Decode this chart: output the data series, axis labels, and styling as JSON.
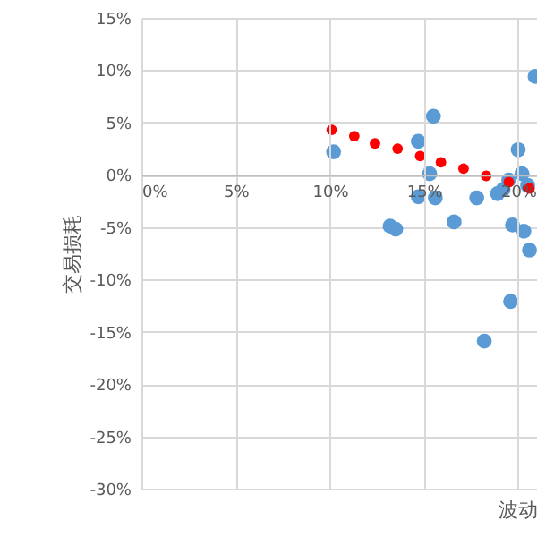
{
  "chart_data": {
    "type": "scatter",
    "xlabel": "波动",
    "ylabel": "交易损耗",
    "xlim": [
      0,
      21
    ],
    "ylim": [
      -30,
      15
    ],
    "xticks": [
      {
        "value": 0,
        "label": "0%"
      },
      {
        "value": 5,
        "label": "5%"
      },
      {
        "value": 10,
        "label": "10%"
      },
      {
        "value": 15,
        "label": "15%"
      },
      {
        "value": 20,
        "label": "20%"
      }
    ],
    "yticks": [
      {
        "value": -30,
        "label": "-30%"
      },
      {
        "value": -25,
        "label": "-25%"
      },
      {
        "value": -20,
        "label": "-20%"
      },
      {
        "value": -15,
        "label": "-15%"
      },
      {
        "value": -10,
        "label": "-10%"
      },
      {
        "value": -5,
        "label": "-5%"
      },
      {
        "value": 0,
        "label": "0%"
      },
      {
        "value": 5,
        "label": "5%"
      },
      {
        "value": 10,
        "label": "10%"
      },
      {
        "value": 15,
        "label": "15%"
      }
    ],
    "grid": true,
    "marker": "circle",
    "series": [
      {
        "color": "#5b9bd5",
        "x": [
          10.2,
          15.5,
          14.7,
          15.3,
          14.7,
          15.6,
          13.2,
          13.5,
          16.6,
          17.8,
          18.9,
          20.0,
          20.2,
          19.5,
          19.7,
          20.3,
          20.6,
          20.9,
          20.5,
          19.2,
          19.6,
          18.2
        ],
        "values": [
          2.2,
          5.6,
          3.2,
          0.1,
          -2.1,
          -2.2,
          -4.9,
          -5.2,
          -4.5,
          -2.2,
          -1.8,
          2.4,
          0.1,
          -0.5,
          -4.8,
          -5.4,
          -7.2,
          9.4,
          -1.0,
          -1.4,
          -12.1,
          -15.9
        ]
      },
      {
        "color": "#ff0000",
        "x": [
          10.1,
          11.3,
          12.4,
          13.6,
          14.8,
          15.9,
          17.1,
          18.3,
          19.5,
          20.6
        ],
        "values": [
          4.3,
          3.7,
          3.0,
          2.5,
          1.8,
          1.2,
          0.6,
          -0.1,
          -0.7,
          -1.3
        ]
      }
    ]
  }
}
